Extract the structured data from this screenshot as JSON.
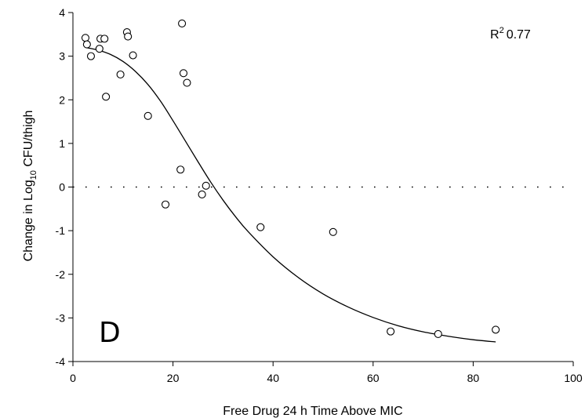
{
  "chart_data": {
    "type": "scatter",
    "xlabel": "Free Drug 24 h Time Above MIC",
    "ylabel_prefix": "Change in Log",
    "ylabel_subscript": "10",
    "ylabel_suffix": " CFU/thigh",
    "panel_label": "D",
    "r2_label": "R",
    "r2_superscript": "2",
    "r2_value": "0.77",
    "xlim": [
      0,
      100
    ],
    "ylim": [
      -4,
      4
    ],
    "x_ticks": [
      0,
      20,
      40,
      60,
      80,
      100
    ],
    "y_ticks": [
      -4,
      -3,
      -2,
      -1,
      0,
      1,
      2,
      3,
      4
    ],
    "grid": false,
    "reference_line": {
      "y": 0,
      "style": "dotted"
    },
    "points": [
      [
        2.5,
        3.42
      ],
      [
        2.8,
        3.27
      ],
      [
        3.6,
        3.0
      ],
      [
        5.3,
        3.17
      ],
      [
        5.5,
        3.4
      ],
      [
        6.3,
        3.4
      ],
      [
        6.6,
        2.07
      ],
      [
        9.5,
        2.58
      ],
      [
        10.8,
        3.55
      ],
      [
        11.0,
        3.45
      ],
      [
        12.0,
        3.02
      ],
      [
        15.0,
        1.63
      ],
      [
        18.5,
        -0.4
      ],
      [
        21.5,
        0.4
      ],
      [
        21.8,
        3.75
      ],
      [
        22.1,
        2.61
      ],
      [
        22.8,
        2.39
      ],
      [
        25.8,
        -0.17
      ],
      [
        26.6,
        0.03
      ],
      [
        37.5,
        -0.92
      ],
      [
        52.0,
        -1.03
      ],
      [
        63.5,
        -3.31
      ],
      [
        73.0,
        -3.37
      ],
      [
        84.5,
        -3.27
      ]
    ],
    "fit_curve": {
      "x": [
        2.5,
        5,
        7.5,
        10,
        12.5,
        15,
        17.5,
        20,
        22.5,
        25,
        27.5,
        30,
        32.5,
        35,
        40,
        45,
        50,
        55,
        60,
        65,
        70,
        75,
        80,
        84.5
      ],
      "y": [
        3.2,
        3.14,
        3.04,
        2.88,
        2.65,
        2.35,
        1.97,
        1.52,
        1.05,
        0.58,
        0.12,
        -0.3,
        -0.68,
        -1.02,
        -1.6,
        -2.07,
        -2.45,
        -2.75,
        -2.99,
        -3.18,
        -3.32,
        -3.42,
        -3.5,
        -3.55
      ]
    }
  }
}
